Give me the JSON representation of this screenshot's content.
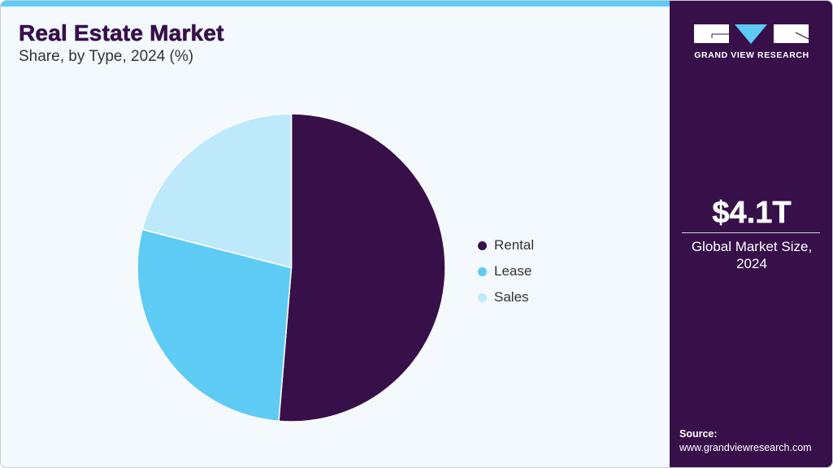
{
  "header": {
    "title": "Real Estate Market",
    "subtitle": "Share, by Type, 2024 (%)"
  },
  "legend": {
    "items": [
      {
        "label": "Rental",
        "color": "#37104a"
      },
      {
        "label": "Lease",
        "color": "#5ecbf5"
      },
      {
        "label": "Sales",
        "color": "#bde9fa"
      }
    ]
  },
  "side_panel": {
    "logo_text": "GRAND VIEW RESEARCH",
    "market_size": "$4.1T",
    "market_label_line1": "Global Market Size,",
    "market_label_line2": "2024",
    "source_label": "Source:",
    "source_url": "www.grandviewresearch.com"
  },
  "colors": {
    "brand_purple": "#37104a",
    "accent_blue": "#5ecbf5",
    "light_blue": "#bde9fa",
    "background": "#f3f9fd"
  },
  "chart_data": {
    "type": "pie",
    "title": "Real Estate Market",
    "subtitle": "Share, by Type, 2024 (%)",
    "categories": [
      "Rental",
      "Lease",
      "Sales"
    ],
    "values": [
      51.3,
      27.7,
      21.0
    ],
    "colors": [
      "#37104a",
      "#5ecbf5",
      "#bde9fa"
    ],
    "start_angle": "12 o'clock, clockwise",
    "legend_position": "right",
    "data_labels": false
  }
}
